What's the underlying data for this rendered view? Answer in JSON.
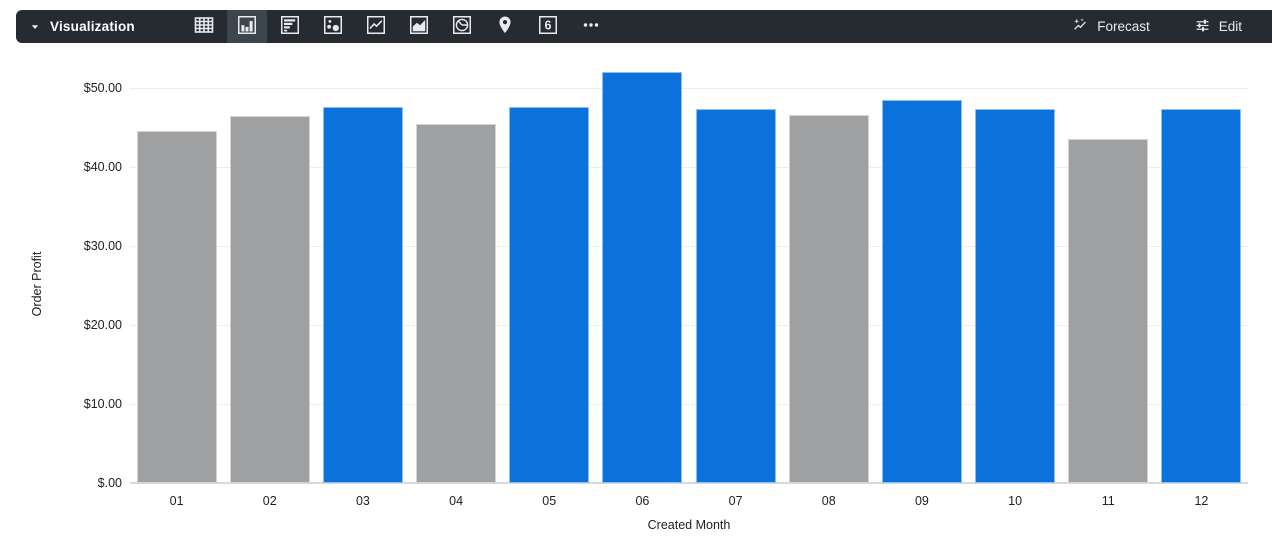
{
  "toolbar": {
    "title": "Visualization",
    "forecast": {
      "label": "Forecast"
    },
    "edit": {
      "label": "Edit"
    },
    "viz_types": [
      {
        "name": "table",
        "icon": "table-icon",
        "selected": false
      },
      {
        "name": "column",
        "icon": "column-chart-icon",
        "selected": true
      },
      {
        "name": "bar",
        "icon": "bar-chart-icon",
        "selected": false
      },
      {
        "name": "scatter",
        "icon": "scatter-icon",
        "selected": false
      },
      {
        "name": "line",
        "icon": "line-chart-icon",
        "selected": false
      },
      {
        "name": "area",
        "icon": "area-chart-icon",
        "selected": false
      },
      {
        "name": "pie",
        "icon": "pie-chart-icon",
        "selected": false
      },
      {
        "name": "map",
        "icon": "map-pin-icon",
        "selected": false
      },
      {
        "name": "single-value",
        "icon": "single-value-icon",
        "selected": false,
        "label": "6"
      },
      {
        "name": "more",
        "icon": "ellipsis-icon",
        "selected": false
      }
    ],
    "colors": {
      "bg": "#262B31",
      "selected_bg": "#3E464D",
      "icon": "#E8EAED"
    }
  },
  "chart_data": {
    "type": "bar",
    "title": "",
    "xlabel": "Created Month",
    "ylabel": "Order Profit",
    "categories": [
      "01",
      "02",
      "03",
      "04",
      "05",
      "06",
      "07",
      "08",
      "09",
      "10",
      "11",
      "12"
    ],
    "values": [
      44.5,
      46.4,
      47.6,
      45.5,
      47.6,
      52.0,
      47.3,
      46.6,
      48.5,
      47.3,
      43.6,
      47.3
    ],
    "bar_colors": [
      "gray",
      "gray",
      "blue",
      "gray",
      "blue",
      "blue",
      "blue",
      "gray",
      "blue",
      "blue",
      "gray",
      "blue"
    ],
    "series_colors": {
      "blue": "#0B72DC",
      "gray": "#9FA0A2"
    },
    "y_ticks": [
      {
        "label": "$50.00",
        "value": 50
      },
      {
        "label": "$40.00",
        "value": 40
      },
      {
        "label": "$30.00",
        "value": 30
      },
      {
        "label": "$20.00",
        "value": 20
      },
      {
        "label": "$10.00",
        "value": 10
      },
      {
        "label": "$.00",
        "value": 0
      }
    ],
    "ylim": [
      0,
      53.5
    ],
    "grid": true,
    "legend": "none"
  }
}
